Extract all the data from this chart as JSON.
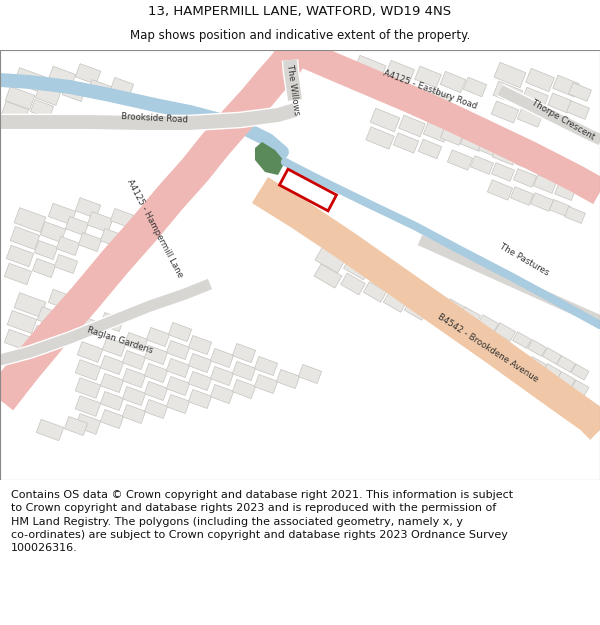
{
  "title": "13, HAMPERMILL LANE, WATFORD, WD19 4NS",
  "subtitle": "Map shows position and indicative extent of the property.",
  "title_fontsize": 9.5,
  "subtitle_fontsize": 8.5,
  "footer_text": "Contains OS data © Crown copyright and database right 2021. This information is subject\nto Crown copyright and database rights 2023 and is reproduced with the permission of\nHM Land Registry. The polygons (including the associated geometry, namely x, y\nco-ordinates) are subject to Crown copyright and database rights 2023 Ordnance Survey\n100026316.",
  "footer_fontsize": 8.0,
  "map_bg": "#f5f3f0",
  "road_pink": "#f0b8b4",
  "road_peach": "#f0c8a8",
  "water_blue": "#aacce0",
  "water_green": "#5a8a5a",
  "building_color": "#e8e6e2",
  "building_edge": "#c8c6c2",
  "road_label_color": "#333333",
  "plot_rect_color": "#cc0000"
}
